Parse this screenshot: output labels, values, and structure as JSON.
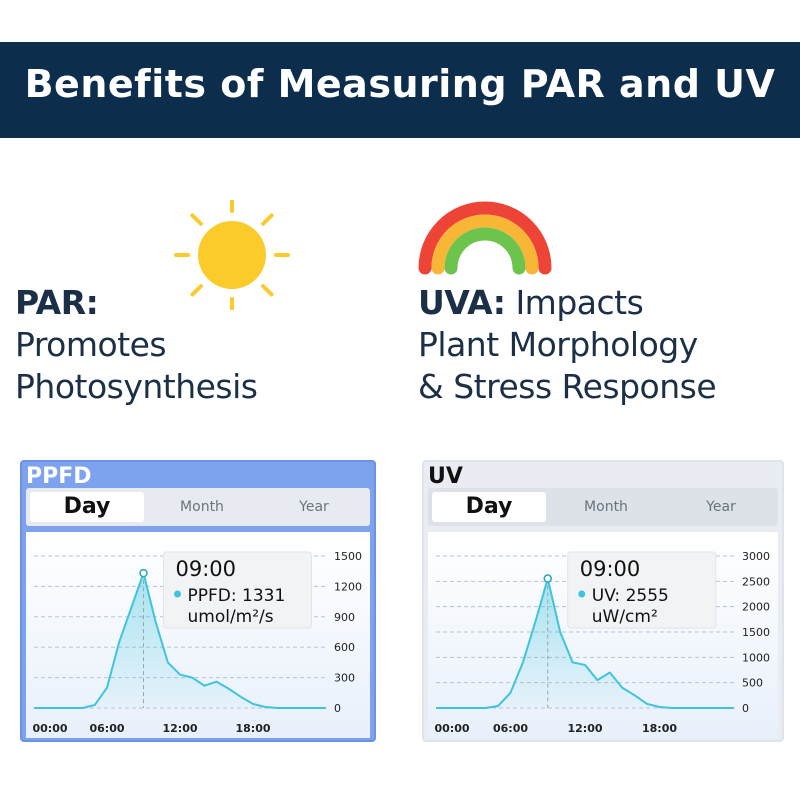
{
  "header": {
    "title": "Benefits of Measuring PAR and UV"
  },
  "par": {
    "heading": "PAR:",
    "line1": "Promotes",
    "line2": "Photosynthesis",
    "icon": "sun-icon",
    "color": "#fbcb2c"
  },
  "uva": {
    "heading": "UVA:",
    "line1_rest": " Impacts",
    "line2": "Plant Morphology",
    "line3": "& Stress Response",
    "icon": "rainbow-icon"
  },
  "ppfd_panel": {
    "title": "PPFD",
    "tabs": [
      "Day",
      "Month",
      "Year"
    ],
    "active_tab": "Day",
    "tooltip": {
      "time": "09:00",
      "value_line": "PPFD: 1331",
      "unit": "umol/m²/s"
    },
    "line_color": "#3ec4dc"
  },
  "uv_panel": {
    "title": "UV",
    "tabs": [
      "Day",
      "Month",
      "Year"
    ],
    "active_tab": "Day",
    "tooltip": {
      "time": "09:00",
      "value_line": "UV: 2555",
      "unit": "uW/cm²"
    },
    "line_color": "#3ec4dc"
  },
  "chart_data": [
    {
      "type": "area",
      "title": "PPFD",
      "x_ticks": [
        "00:00",
        "06:00",
        "12:00",
        "18:00"
      ],
      "y_ticks": [
        0,
        300,
        600,
        900,
        1200,
        1500
      ],
      "xlim": [
        0,
        24
      ],
      "ylim": [
        0,
        1500
      ],
      "x": [
        0,
        4,
        5,
        6,
        7,
        9,
        10,
        11,
        12,
        13,
        14,
        15,
        16,
        17,
        18,
        19,
        20,
        22,
        24
      ],
      "y": [
        0,
        0,
        30,
        200,
        650,
        1331,
        850,
        450,
        330,
        300,
        220,
        260,
        190,
        110,
        40,
        10,
        0,
        0,
        0
      ],
      "highlight": {
        "x": 9,
        "y": 1331
      }
    },
    {
      "type": "area",
      "title": "UV",
      "x_ticks": [
        "00:00",
        "06:00",
        "12:00",
        "18:00"
      ],
      "y_ticks": [
        0,
        500,
        1000,
        1500,
        2000,
        2500,
        3000
      ],
      "xlim": [
        0,
        24
      ],
      "ylim": [
        0,
        3000
      ],
      "x": [
        0,
        4,
        5,
        6,
        7,
        8,
        9,
        10,
        11,
        12,
        13,
        14,
        15,
        16,
        17,
        18,
        19,
        20,
        22,
        24
      ],
      "y": [
        0,
        0,
        40,
        300,
        900,
        1700,
        2555,
        1500,
        900,
        850,
        550,
        700,
        400,
        250,
        80,
        20,
        0,
        0,
        0,
        0
      ],
      "highlight": {
        "x": 9,
        "y": 2555
      }
    }
  ]
}
